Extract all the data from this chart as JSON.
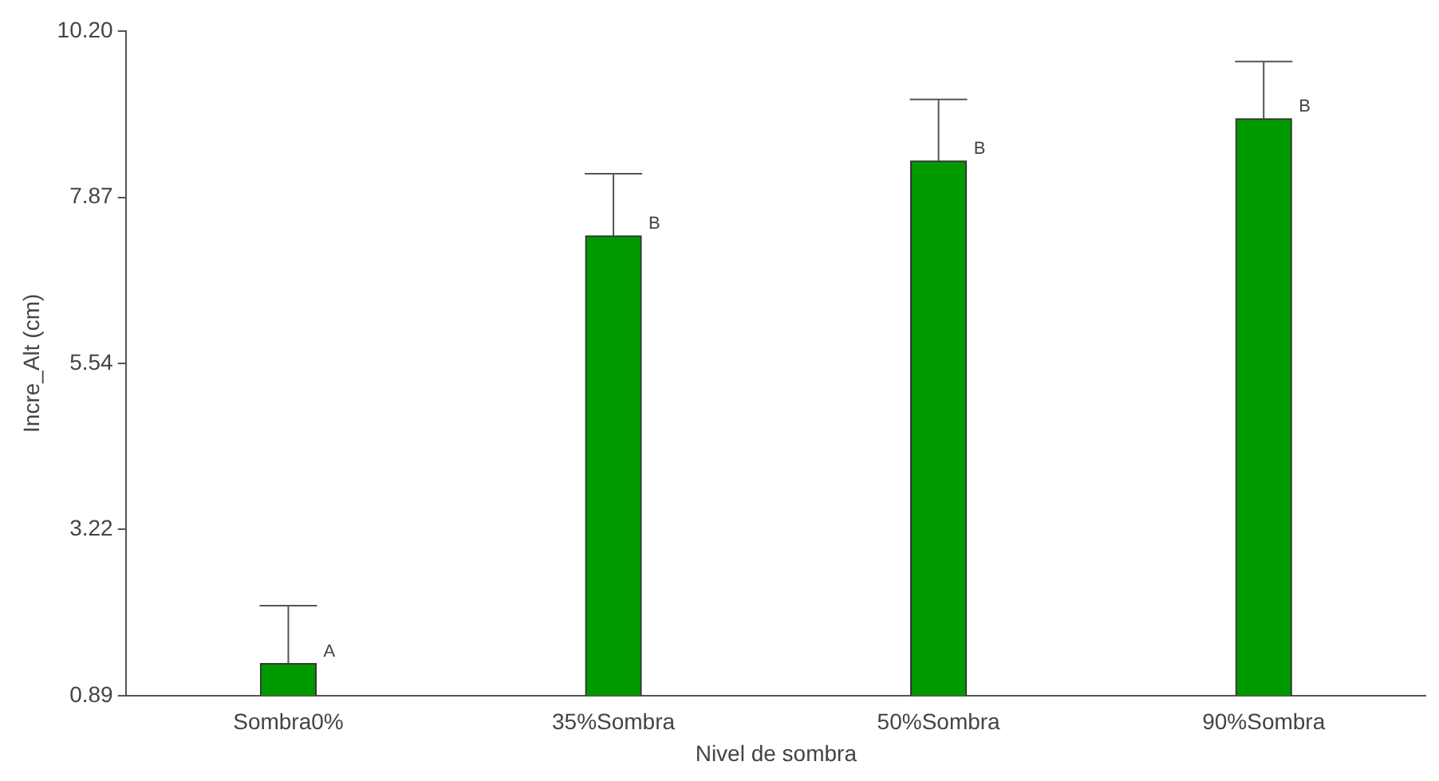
{
  "chart_data": {
    "type": "bar",
    "xlabel": "Nivel de sombra",
    "ylabel": "Incre_Alt (cm)",
    "categories": [
      "Sombra0%",
      "35%Sombra",
      "50%Sombra",
      "90%Sombra"
    ],
    "values": [
      1.34,
      7.33,
      8.38,
      8.97
    ],
    "errors": [
      [
        1.34,
        2.15
      ],
      [
        7.33,
        8.2
      ],
      [
        8.38,
        9.24
      ],
      [
        8.97,
        9.77
      ]
    ],
    "color": "#009900",
    "ylim": [
      0.89,
      10.2
    ],
    "yticks": [
      0.89,
      3.22,
      5.54,
      7.87,
      {
        "value": 10.2,
        "label": "10.20"
      }
    ],
    "grid": false,
    "legend": false,
    "annotations": [
      {
        "text": "A",
        "x": "Sombra0%",
        "y": 1.34
      },
      {
        "text": "B",
        "x": "35%Sombra",
        "y": 7.33
      },
      {
        "text": "B",
        "x": "50%Sombra",
        "y": 8.38
      },
      {
        "text": "B",
        "x": "90%Sombra",
        "y": 8.97
      }
    ]
  }
}
